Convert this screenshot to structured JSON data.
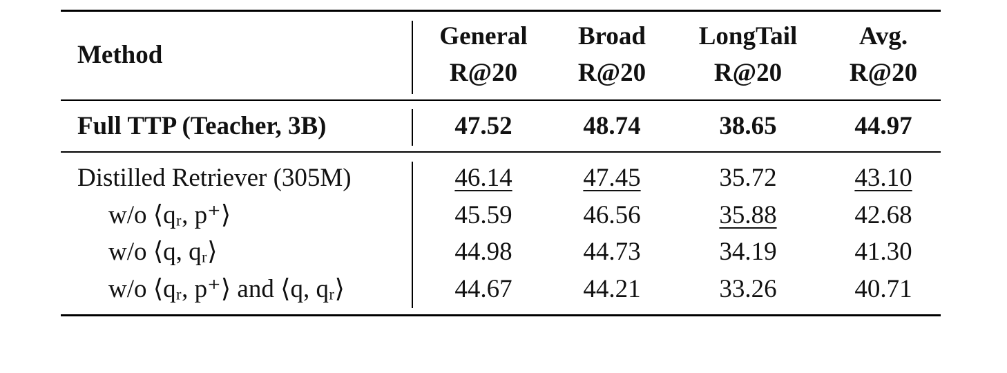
{
  "table": {
    "header": {
      "method": "Method",
      "columns": [
        [
          "General",
          "R@20"
        ],
        [
          "Broad",
          "R@20"
        ],
        [
          "LongTail",
          "R@20"
        ],
        [
          "Avg.",
          "R@20"
        ]
      ]
    },
    "groups": [
      {
        "rows": [
          {
            "label": "Full TTP (Teacher, 3B)",
            "indent": false,
            "bold": true,
            "values": [
              "47.52",
              "48.74",
              "38.65",
              "44.97"
            ],
            "underline": [
              false,
              false,
              false,
              false
            ]
          }
        ]
      },
      {
        "rows": [
          {
            "label": "Distilled Retriever (305M)",
            "indent": false,
            "bold": false,
            "values": [
              "46.14",
              "47.45",
              "35.72",
              "43.10"
            ],
            "underline": [
              true,
              true,
              false,
              true
            ]
          },
          {
            "label": "w/o ⟨qᵣ, p⁺⟩",
            "indent": true,
            "bold": false,
            "values": [
              "45.59",
              "46.56",
              "35.88",
              "42.68"
            ],
            "underline": [
              false,
              false,
              true,
              false
            ]
          },
          {
            "label": "w/o ⟨q, qᵣ⟩",
            "indent": true,
            "bold": false,
            "values": [
              "44.98",
              "44.73",
              "34.19",
              "41.30"
            ],
            "underline": [
              false,
              false,
              false,
              false
            ]
          },
          {
            "label": "w/o ⟨qᵣ, p⁺⟩ and ⟨q, qᵣ⟩",
            "indent": true,
            "bold": false,
            "values": [
              "44.67",
              "44.21",
              "33.26",
              "40.71"
            ],
            "underline": [
              false,
              false,
              false,
              false
            ]
          }
        ]
      }
    ]
  }
}
